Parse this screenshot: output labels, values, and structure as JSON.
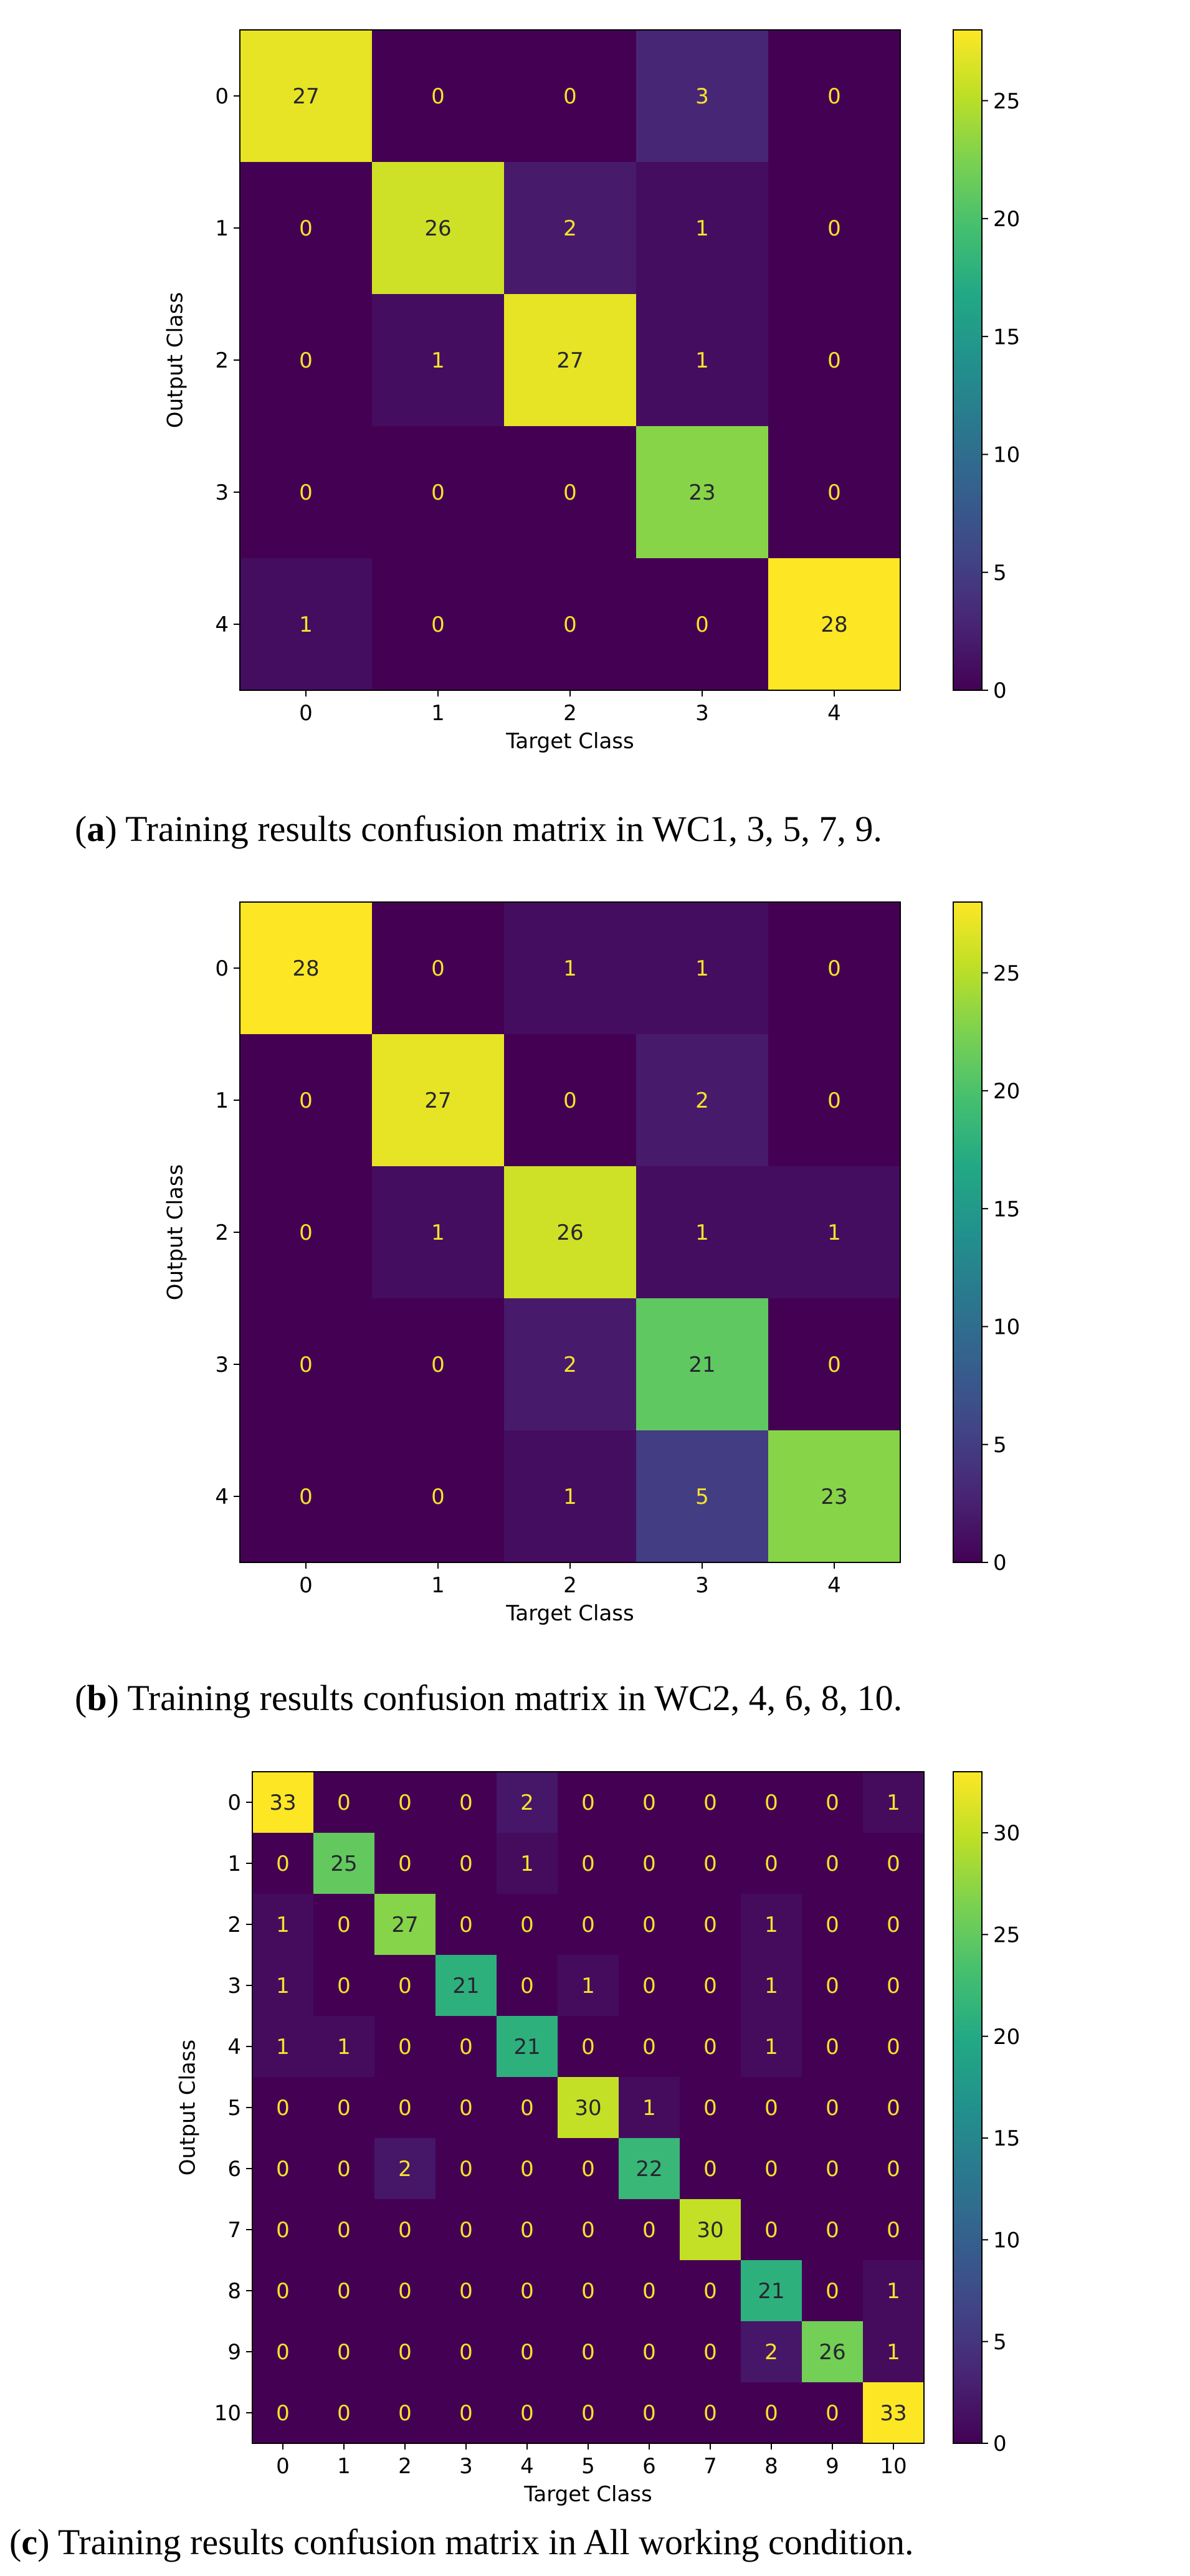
{
  "figures": [
    {
      "caption_label": "a",
      "caption_text": "Training results confusion matrix in WC1, 3, 5, 7, 9."
    },
    {
      "caption_label": "b",
      "caption_text": "Training results confusion matrix in WC2, 4, 6, 8, 10."
    },
    {
      "caption_label": "c",
      "caption_text": "Training results confusion matrix in All working condition."
    }
  ],
  "chart_data": [
    {
      "type": "heatmap",
      "title": "",
      "xlabel": "Target Class",
      "ylabel": "Output Class",
      "x_ticks": [
        "0",
        "1",
        "2",
        "3",
        "4"
      ],
      "y_ticks": [
        "0",
        "1",
        "2",
        "3",
        "4"
      ],
      "matrix": [
        [
          27,
          0,
          0,
          3,
          0
        ],
        [
          0,
          26,
          2,
          1,
          0
        ],
        [
          0,
          1,
          27,
          1,
          0
        ],
        [
          0,
          0,
          0,
          23,
          0
        ],
        [
          1,
          0,
          0,
          0,
          28
        ]
      ],
      "colormap": "viridis",
      "vmin": 0,
      "vmax": 28,
      "colorbar_ticks": [
        0,
        5,
        10,
        15,
        20,
        25
      ]
    },
    {
      "type": "heatmap",
      "title": "",
      "xlabel": "Target Class",
      "ylabel": "Output Class",
      "x_ticks": [
        "0",
        "1",
        "2",
        "3",
        "4"
      ],
      "y_ticks": [
        "0",
        "1",
        "2",
        "3",
        "4"
      ],
      "matrix": [
        [
          28,
          0,
          1,
          1,
          0
        ],
        [
          0,
          27,
          0,
          2,
          0
        ],
        [
          0,
          1,
          26,
          1,
          1
        ],
        [
          0,
          0,
          2,
          21,
          0
        ],
        [
          0,
          0,
          1,
          5,
          23
        ]
      ],
      "colormap": "viridis",
      "vmin": 0,
      "vmax": 28,
      "colorbar_ticks": [
        0,
        5,
        10,
        15,
        20,
        25
      ]
    },
    {
      "type": "heatmap",
      "title": "",
      "xlabel": "Target Class",
      "ylabel": "Output Class",
      "x_ticks": [
        "0",
        "1",
        "2",
        "3",
        "4",
        "5",
        "6",
        "7",
        "8",
        "9",
        "10"
      ],
      "y_ticks": [
        "0",
        "1",
        "2",
        "3",
        "4",
        "5",
        "6",
        "7",
        "8",
        "9",
        "10"
      ],
      "matrix": [
        [
          33,
          0,
          0,
          0,
          2,
          0,
          0,
          0,
          0,
          0,
          1
        ],
        [
          0,
          25,
          0,
          0,
          1,
          0,
          0,
          0,
          0,
          0,
          0
        ],
        [
          1,
          0,
          27,
          0,
          0,
          0,
          0,
          0,
          1,
          0,
          0
        ],
        [
          1,
          0,
          0,
          21,
          0,
          1,
          0,
          0,
          1,
          0,
          0
        ],
        [
          1,
          1,
          0,
          0,
          21,
          0,
          0,
          0,
          1,
          0,
          0
        ],
        [
          0,
          0,
          0,
          0,
          0,
          30,
          1,
          0,
          0,
          0,
          0
        ],
        [
          0,
          0,
          2,
          0,
          0,
          0,
          22,
          0,
          0,
          0,
          0
        ],
        [
          0,
          0,
          0,
          0,
          0,
          0,
          0,
          30,
          0,
          0,
          0
        ],
        [
          0,
          0,
          0,
          0,
          0,
          0,
          0,
          0,
          21,
          0,
          1
        ],
        [
          0,
          0,
          0,
          0,
          0,
          0,
          0,
          0,
          2,
          26,
          1
        ],
        [
          0,
          0,
          0,
          0,
          0,
          0,
          0,
          0,
          0,
          0,
          33
        ]
      ],
      "colormap": "viridis",
      "vmin": 0,
      "vmax": 33,
      "colorbar_ticks": [
        0,
        5,
        10,
        15,
        20,
        25,
        30
      ]
    }
  ]
}
